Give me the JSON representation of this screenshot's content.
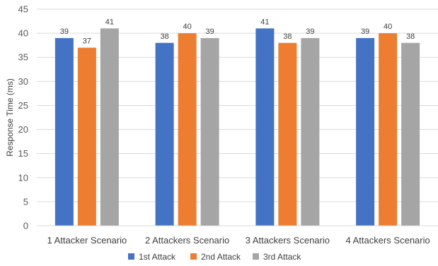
{
  "chart_data": {
    "type": "bar",
    "title": "",
    "xlabel": "",
    "ylabel": "Response Time (ms)",
    "ylim": [
      0,
      45
    ],
    "yticks": [
      0,
      5,
      10,
      15,
      20,
      25,
      30,
      35,
      40,
      45
    ],
    "grid": true,
    "legend_position": "bottom",
    "categories": [
      "1 Attacker Scenario",
      "2 Attackers Scenario",
      "3 Attackers Scenario",
      "4 Attackers Scenario"
    ],
    "series": [
      {
        "name": "1st Attack",
        "color": "#4472C4",
        "values": [
          39,
          38,
          41,
          39
        ]
      },
      {
        "name": "2nd Attack",
        "color": "#ED7D31",
        "values": [
          37,
          40,
          38,
          40
        ]
      },
      {
        "name": "3rd Attack",
        "color": "#A5A5A5",
        "values": [
          41,
          39,
          39,
          38
        ]
      }
    ]
  }
}
